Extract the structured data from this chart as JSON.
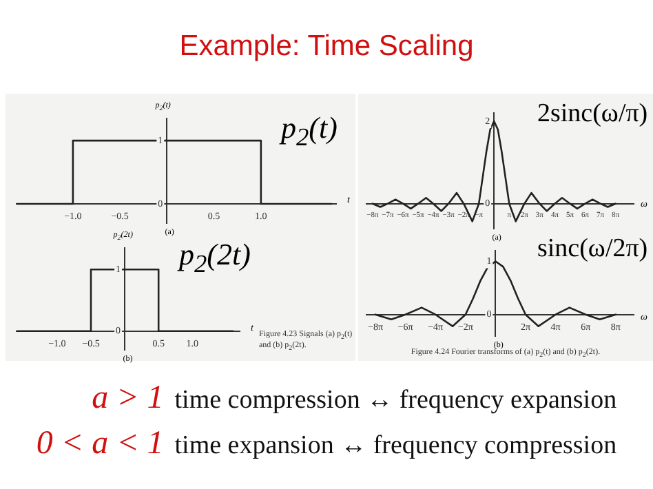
{
  "chart_data": [
    {
      "type": "other",
      "title": "Example: Time Scaling"
    },
    {
      "type": "line",
      "title": "p$_{2}$(t)",
      "xlabel": "t",
      "ylabel": "p$_{2}$(t)",
      "annotations": [
        "(a)"
      ],
      "color": "#222222",
      "marker": "none",
      "x": [
        -1.6,
        -1,
        -1,
        1,
        1,
        1.75
      ],
      "values": [
        0,
        0,
        1,
        1,
        0,
        0
      ],
      "xlim": [
        -1.6,
        1.8
      ],
      "ylim": [
        -0.3,
        1.35
      ],
      "xticks": [
        {
          "value": -1,
          "label": "−1.0"
        },
        {
          "value": -0.5,
          "label": "−0.5"
        },
        {
          "value": 0,
          "label": null
        },
        {
          "value": 0.5,
          "label": "0.5"
        },
        {
          "value": 1,
          "label": "1.0"
        }
      ],
      "yticks": [
        0,
        1
      ]
    },
    {
      "type": "line",
      "title": "p$_{2}$(2t)",
      "xlabel": "t",
      "ylabel": "p$_{2}$(2t)",
      "annotations": [
        "(b)",
        "Figure 4.23 Signals (a) p$_{2}$(t) and (b) p$_{2}$(2t)."
      ],
      "color": "#222222",
      "marker": "none",
      "x": [
        -1.6,
        -0.5,
        -0.5,
        0.5,
        0.5,
        1.6
      ],
      "values": [
        0,
        0,
        1,
        1,
        0,
        0
      ],
      "xlim": [
        -1.6,
        1.7
      ],
      "ylim": [
        -0.3,
        1.35
      ],
      "xticks": [
        {
          "value": -1,
          "label": "−1.0"
        },
        {
          "value": -0.5,
          "label": "−0.5"
        },
        {
          "value": 0,
          "label": null
        },
        {
          "value": 0.5,
          "label": "0.5"
        },
        {
          "value": 1,
          "label": "1.0"
        }
      ],
      "yticks": [
        0,
        1
      ]
    },
    {
      "type": "line",
      "title": "2sinc(ω/π)",
      "xlabel": "ω",
      "annotations": [
        "(a)"
      ],
      "color": "#222222",
      "marker": "none",
      "x": [
        -25.13,
        -23.53,
        -21.99,
        -20.39,
        -18.85,
        -17.22,
        -15.71,
        -14.07,
        -12.57,
        -10.9,
        -9.42,
        -7.73,
        -6.28,
        -4.49,
        -3.14,
        -1.57,
        -0.79,
        0,
        0.79,
        1.57,
        3.14,
        4.49,
        6.28,
        7.73,
        9.42,
        10.9,
        12.57,
        14.07,
        15.71,
        17.22,
        18.85,
        20.39,
        21.99,
        23.53,
        25.13
      ],
      "values": [
        0,
        -0.08,
        0,
        0.1,
        0,
        -0.12,
        0,
        0.14,
        0,
        -0.18,
        0,
        0.26,
        0,
        -0.43,
        0,
        1.27,
        1.8,
        2,
        1.8,
        1.27,
        0,
        -0.43,
        0,
        0.26,
        0,
        -0.18,
        0,
        0.14,
        0,
        -0.12,
        0,
        0.1,
        0,
        -0.08,
        0
      ],
      "xlim": [
        -26.4,
        28.9
      ],
      "ylim": [
        -0.6,
        2.2
      ],
      "xticks": [
        {
          "value": -25.13,
          "label": "−8π"
        },
        {
          "value": -21.99,
          "label": "−7π"
        },
        {
          "value": -18.85,
          "label": "−6π"
        },
        {
          "value": -15.71,
          "label": "−5π"
        },
        {
          "value": -12.57,
          "label": "−4π"
        },
        {
          "value": -9.42,
          "label": "−3π"
        },
        {
          "value": -6.28,
          "label": "−2π"
        },
        {
          "value": -3.14,
          "label": "−π"
        },
        {
          "value": 0,
          "label": null
        },
        {
          "value": 3.14,
          "label": "π"
        },
        {
          "value": 6.28,
          "label": "2π"
        },
        {
          "value": 9.42,
          "label": "3π"
        },
        {
          "value": 12.57,
          "label": "4π"
        },
        {
          "value": 15.71,
          "label": "5π"
        },
        {
          "value": 18.85,
          "label": "6π"
        },
        {
          "value": 21.99,
          "label": "7π"
        },
        {
          "value": 25.13,
          "label": "8π"
        }
      ],
      "yticks": [
        0,
        2
      ]
    },
    {
      "type": "line",
      "title": "sinc(ω/2π)",
      "xlabel": "ω",
      "annotations": [
        "(b)",
        "Figure 4.24 Fourier transforms of (a) p$_{2}$(t) and (b) p$_{2}$(2t)."
      ],
      "color": "#222222",
      "marker": "none",
      "x": [
        -25.13,
        -21.8,
        -18.85,
        -15.46,
        -12.57,
        -8.98,
        -6.28,
        -4.71,
        -3.14,
        -1.57,
        0,
        1.57,
        3.14,
        4.71,
        6.28,
        8.98,
        12.57,
        15.46,
        18.85,
        21.8,
        25.13
      ],
      "values": [
        0,
        -0.09,
        0,
        0.13,
        0,
        -0.22,
        0,
        0.3,
        0.64,
        0.9,
        1,
        0.9,
        0.64,
        0.3,
        0,
        -0.22,
        0,
        0.13,
        0,
        -0.09,
        0
      ],
      "xlim": [
        -27,
        28.9
      ],
      "ylim": [
        -0.4,
        1.2
      ],
      "xticks": [
        {
          "value": -25.13,
          "label": "−8π"
        },
        {
          "value": -18.85,
          "label": "−6π"
        },
        {
          "value": -12.57,
          "label": "−4π"
        },
        {
          "value": -6.28,
          "label": "−2π"
        },
        {
          "value": 0,
          "label": null
        },
        {
          "value": 6.28,
          "label": "2π"
        },
        {
          "value": 12.57,
          "label": "4π"
        },
        {
          "value": 18.85,
          "label": "6π"
        },
        {
          "value": 25.13,
          "label": "8π"
        }
      ],
      "yticks": [
        0,
        1
      ]
    },
    {
      "type": "other",
      "annotations": [
        "a > 1",
        "time compression ↔ frequency expansion",
        "0 < a < 1",
        "time expansion ↔ frequency compression"
      ]
    }
  ]
}
